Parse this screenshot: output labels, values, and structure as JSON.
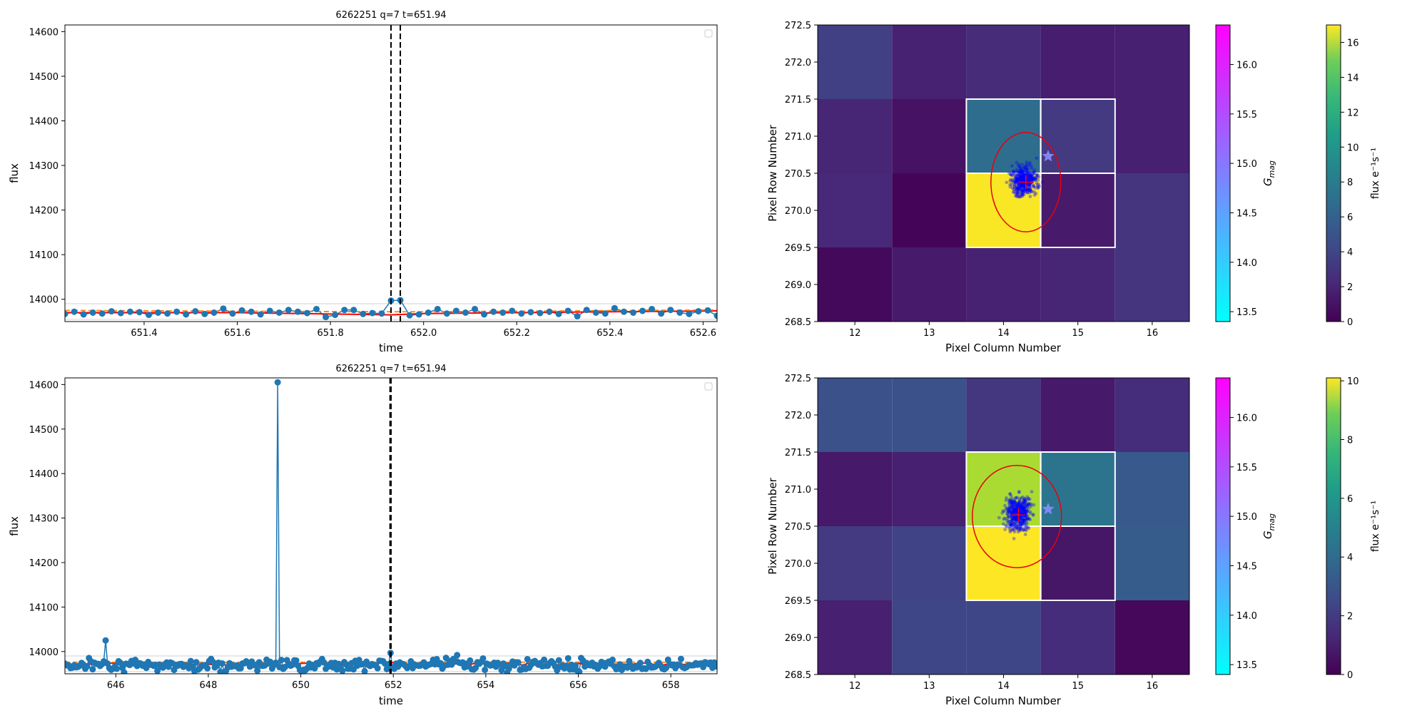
{
  "figure_title": "",
  "chart_data": [
    {
      "type": "line",
      "panel": "top-left",
      "title": "6262251 q=7 t=651.94",
      "xlabel": "time",
      "ylabel": "flux",
      "xlim": [
        651.23,
        652.63
      ],
      "ylim": [
        13950,
        14615
      ],
      "xticks": [
        651.4,
        651.6,
        651.8,
        652.0,
        652.2,
        652.4,
        652.6
      ],
      "xtick_labels": [
        "651.4",
        "651.6",
        "651.8",
        "652.0",
        "652.2",
        "652.4",
        "652.6"
      ],
      "yticks": [
        14000,
        14100,
        14200,
        14300,
        14400,
        14500,
        14600
      ],
      "ytick_labels": [
        "14000",
        "14100",
        "14200",
        "14300",
        "14400",
        "14500",
        "14600"
      ],
      "vlines": [
        651.93,
        651.95
      ],
      "legend": "top-right, empty",
      "series": [
        {
          "kind": "flux-points",
          "color": "#1f77b4",
          "x": [
            651.23,
            651.25,
            651.27,
            651.29,
            651.31,
            651.33,
            651.35,
            651.37,
            651.39,
            651.41,
            651.43,
            651.45,
            651.47,
            651.49,
            651.51,
            651.53,
            651.55,
            651.57,
            651.59,
            651.61,
            651.63,
            651.65,
            651.67,
            651.69,
            651.71,
            651.73,
            651.75,
            651.77,
            651.79,
            651.81,
            651.83,
            651.85,
            651.87,
            651.89,
            651.91,
            651.93,
            651.95,
            651.97,
            651.99,
            652.01,
            652.03,
            652.05,
            652.07,
            652.09,
            652.11,
            652.13,
            652.15,
            652.17,
            652.19,
            652.21,
            652.23,
            652.25,
            652.27,
            652.29,
            652.31,
            652.33,
            652.35,
            652.37,
            652.39,
            652.41,
            652.43,
            652.45,
            652.47,
            652.49,
            652.51,
            652.53,
            652.55,
            652.57,
            652.59,
            652.61,
            652.63
          ],
          "y": [
            13967,
            13972,
            13966,
            13970,
            13968,
            13973,
            13969,
            13972,
            13971,
            13965,
            13970,
            13968,
            13972,
            13966,
            13973,
            13967,
            13970,
            13979,
            13968,
            13975,
            13972,
            13966,
            13974,
            13970,
            13976,
            13972,
            13969,
            13978,
            13960,
            13965,
            13976,
            13976,
            13967,
            13969,
            13968,
            13997,
            13998,
            13964,
            13966,
            13970,
            13978,
            13968,
            13974,
            13970,
            13978,
            13966,
            13972,
            13970,
            13974,
            13968,
            13971,
            13969,
            13972,
            13967,
            13974,
            13962,
            13976,
            13970,
            13968,
            13980,
            13972,
            13970,
            13974,
            13978,
            13968,
            13976,
            13970,
            13967,
            13973,
            13975,
            13963
          ]
        },
        {
          "kind": "model-line",
          "color": "#ff0000",
          "x": [
            651.23,
            651.6,
            651.93,
            652.0,
            652.4,
            652.63
          ],
          "y": [
            13970,
            13970,
            13965,
            13968,
            13972,
            13974
          ]
        },
        {
          "kind": "dashed-line",
          "color": "#ff7f0e",
          "x": [
            651.23,
            651.9,
            652.0,
            652.63
          ],
          "y": [
            13975,
            13972,
            13972,
            13976
          ]
        },
        {
          "kind": "grey-band",
          "color": "#cccccc",
          "x": [
            651.23,
            652.63
          ],
          "y_upper": [
            13990,
            13990
          ],
          "y_lower": [
            13955,
            13955
          ]
        }
      ]
    },
    {
      "type": "line",
      "panel": "bottom-left",
      "title": "6262251 q=7 t=651.94",
      "xlabel": "time",
      "ylabel": "flux",
      "xlim": [
        644.9,
        659.0
      ],
      "ylim": [
        13950,
        14615
      ],
      "xticks": [
        646,
        648,
        650,
        652,
        654,
        656,
        658
      ],
      "xtick_labels": [
        "646",
        "648",
        "650",
        "652",
        "654",
        "656",
        "658"
      ],
      "yticks": [
        14000,
        14100,
        14200,
        14300,
        14400,
        14500,
        14600
      ],
      "ytick_labels": [
        "14000",
        "14100",
        "14200",
        "14300",
        "14400",
        "14500",
        "14600"
      ],
      "vlines": [
        651.93,
        651.95
      ],
      "legend": "top-right, empty",
      "spikes": [
        {
          "x": 645.8,
          "y": 14025
        },
        {
          "x": 649.5,
          "y": 14605
        },
        {
          "x": 651.94,
          "y": 13997
        },
        {
          "x": 653.4,
          "y": 13992
        }
      ],
      "series": [
        {
          "kind": "flux-points",
          "color": "#1f77b4",
          "x_range": [
            644.9,
            659.0
          ],
          "baseline": 13970,
          "scatter_amplitude": 14
        },
        {
          "kind": "model-line",
          "color": "#ff0000",
          "baseline": 13972
        },
        {
          "kind": "dashed-line",
          "color": "#ff7f0e",
          "baseline": 13976
        }
      ]
    },
    {
      "type": "heatmap",
      "panel": "top-right",
      "xlabel": "Pixel Column Number",
      "ylabel": "Pixel Row Number",
      "xlim": [
        11.5,
        16.5
      ],
      "ylim": [
        268.5,
        272.5
      ],
      "xticks": [
        12,
        13,
        14,
        15,
        16
      ],
      "xtick_labels": [
        "12",
        "13",
        "14",
        "15",
        "16"
      ],
      "yticks": [
        268.5,
        269.0,
        269.5,
        270.0,
        270.5,
        271.0,
        271.5,
        272.0,
        272.5
      ],
      "ytick_labels": [
        "268.5",
        "269.0",
        "269.5",
        "270.0",
        "270.5",
        "271.0",
        "271.5",
        "272.0",
        "272.5"
      ],
      "columns": [
        12,
        13,
        14,
        15,
        16
      ],
      "rows": [
        272,
        271,
        270,
        269
      ],
      "values": [
        [
          3.2,
          1.6,
          2.1,
          1.4,
          1.5
        ],
        [
          1.8,
          0.8,
          6.0,
          2.9,
          1.5
        ],
        [
          1.9,
          0.2,
          16.9,
          1.2,
          2.6
        ],
        [
          0.4,
          1.2,
          1.6,
          1.8,
          2.6
        ]
      ],
      "aperture": [
        [
          14,
          271
        ],
        [
          15,
          271
        ],
        [
          14,
          270
        ],
        [
          15,
          270
        ]
      ],
      "centroid": {
        "x": 14.3,
        "y": 270.38
      },
      "ellipse": {
        "cx": 14.3,
        "cy": 270.38,
        "rx": 0.47,
        "ry": 0.67
      },
      "star": {
        "x": 14.6,
        "y": 270.73
      },
      "points_cloud": {
        "cx": 14.28,
        "cy": 270.4,
        "sx": 0.17,
        "sy": 0.2,
        "color": "#0000ff"
      },
      "colorbar_flux": {
        "label": "flux e⁻¹s⁻¹",
        "min": 0,
        "max": 17,
        "ticks": [
          0,
          2,
          4,
          6,
          8,
          10,
          12,
          14,
          16
        ],
        "tick_labels": [
          "0",
          "2",
          "4",
          "6",
          "8",
          "10",
          "12",
          "14",
          "16"
        ]
      },
      "colorbar_gmag": {
        "label": "G_mag",
        "min": 13.4,
        "max": 16.4,
        "ticks": [
          13.5,
          14.0,
          14.5,
          15.0,
          15.5,
          16.0
        ],
        "tick_labels": [
          "13.5",
          "14.0",
          "14.5",
          "15.0",
          "15.5",
          "16.0"
        ]
      }
    },
    {
      "type": "heatmap",
      "panel": "bottom-right",
      "xlabel": "Pixel Column Number",
      "ylabel": "Pixel Row Number",
      "xlim": [
        11.5,
        16.5
      ],
      "ylim": [
        268.5,
        272.5
      ],
      "xticks": [
        12,
        13,
        14,
        15,
        16
      ],
      "xtick_labels": [
        "12",
        "13",
        "14",
        "15",
        "16"
      ],
      "yticks": [
        268.5,
        269.0,
        269.5,
        270.0,
        270.5,
        271.0,
        271.5,
        272.0,
        272.5
      ],
      "ytick_labels": [
        "268.5",
        "269.0",
        "269.5",
        "270.0",
        "270.5",
        "271.0",
        "271.5",
        "272.0",
        "272.5"
      ],
      "columns": [
        12,
        13,
        14,
        15,
        16
      ],
      "rows": [
        272,
        271,
        270,
        269
      ],
      "values": [
        [
          2.5,
          2.5,
          1.6,
          0.7,
          1.3
        ],
        [
          0.7,
          0.9,
          8.8,
          3.9,
          2.8
        ],
        [
          1.7,
          2.0,
          10.1,
          0.6,
          2.9
        ],
        [
          0.9,
          2.1,
          2.1,
          1.3,
          0.2
        ]
      ],
      "aperture": [
        [
          14,
          271
        ],
        [
          15,
          271
        ],
        [
          14,
          270
        ],
        [
          15,
          270
        ]
      ],
      "centroid": {
        "x": 14.2,
        "y": 270.65
      },
      "ellipse": {
        "cx": 14.18,
        "cy": 270.63,
        "rx": 0.6,
        "ry": 0.69
      },
      "star": {
        "x": 14.6,
        "y": 270.73
      },
      "points_cloud": {
        "cx": 14.2,
        "cy": 270.68,
        "sx": 0.17,
        "sy": 0.24,
        "color": "#0000ff"
      },
      "colorbar_flux": {
        "label": "flux e⁻¹s⁻¹",
        "min": 0,
        "max": 10.1,
        "ticks": [
          0,
          2,
          4,
          6,
          8,
          10
        ],
        "tick_labels": [
          "0",
          "2",
          "4",
          "6",
          "8",
          "10"
        ]
      },
      "colorbar_gmag": {
        "label": "G_mag",
        "min": 13.4,
        "max": 16.4,
        "ticks": [
          13.5,
          14.0,
          14.5,
          15.0,
          15.5,
          16.0
        ],
        "tick_labels": [
          "13.5",
          "14.0",
          "14.5",
          "15.0",
          "15.5",
          "16.0"
        ]
      }
    }
  ]
}
